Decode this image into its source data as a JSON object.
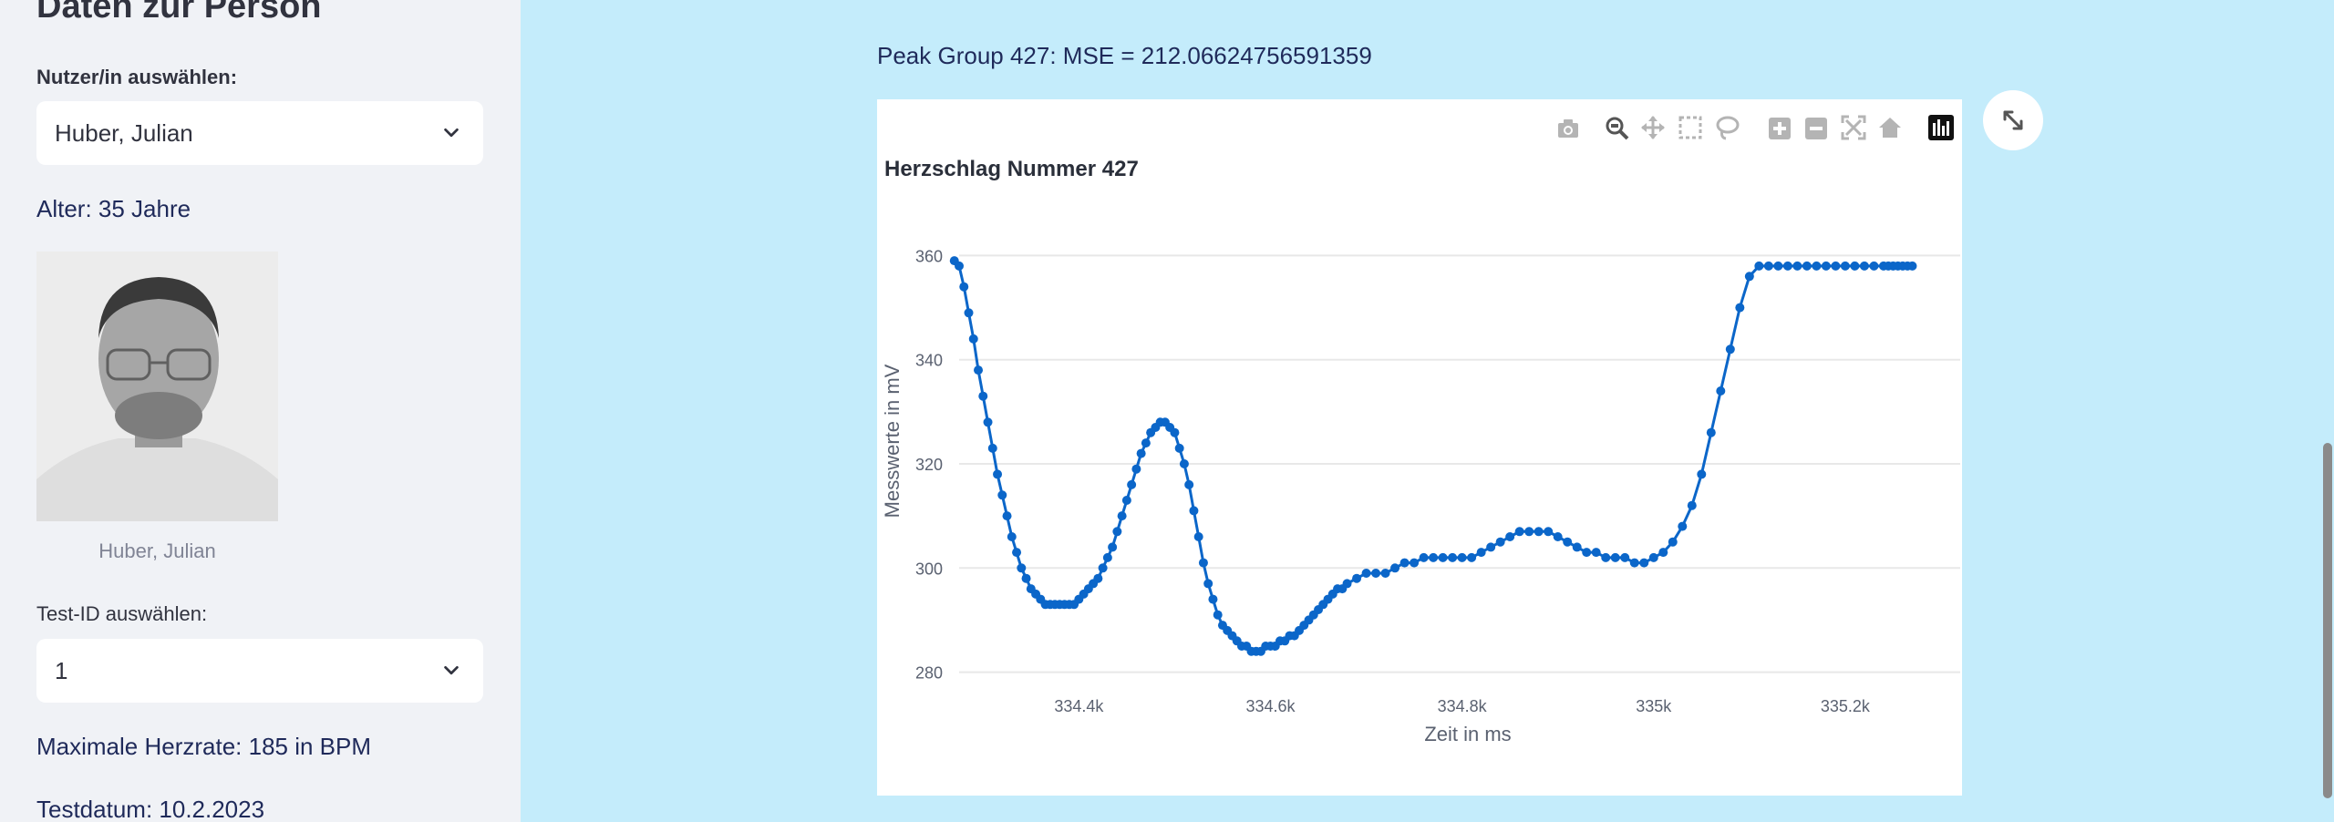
{
  "sidebar": {
    "title": "Daten zur Person",
    "user_select_label": "Nutzer/in auswählen:",
    "user_select_value": "Huber, Julian",
    "age_text": "Alter: 35 Jahre",
    "photo_caption": "Huber, Julian",
    "test_select_label": "Test-ID auswählen:",
    "test_select_value": "1",
    "max_hr_text": "Maximale Herzrate: 185 in BPM",
    "test_date_text": "Testdatum: 10.2.2023"
  },
  "main": {
    "peak_title": "Peak Group 427: MSE = 212.06624756591359"
  },
  "toolbar": {
    "icons": [
      "camera-icon",
      "zoom-icon",
      "pan-icon",
      "box-select-icon",
      "lasso-select-icon",
      "zoom-in-icon",
      "zoom-out-icon",
      "autoscale-icon",
      "reset-axes-icon",
      "plotly-logo-icon"
    ]
  },
  "colors": {
    "background": "#c4ecfb",
    "sidebar": "#f0f2f6",
    "line": "#0b66c9"
  },
  "chart_data": {
    "type": "line",
    "title": "Herzschlag Nummer 427",
    "xlabel": "Zeit in ms",
    "ylabel": "Messwerte in mV",
    "xlim": [
      334275,
      335320
    ],
    "ylim": [
      278,
      362
    ],
    "x_ticks": [
      334400,
      334600,
      334800,
      335000,
      335200
    ],
    "x_tick_labels": [
      "334.4k",
      "334.6k",
      "334.8k",
      "335k",
      "335.2k"
    ],
    "y_ticks": [
      280,
      300,
      320,
      340,
      360
    ],
    "y_tick_labels": [
      "280",
      "300",
      "320",
      "340",
      "360"
    ],
    "grid": "horizontal",
    "series": [
      {
        "x": [
          334270,
          334275,
          334280,
          334285,
          334290,
          334295,
          334300,
          334305,
          334310,
          334315,
          334320,
          334325,
          334330,
          334335,
          334340,
          334345,
          334350,
          334355,
          334360,
          334365,
          334370,
          334375,
          334380,
          334385,
          334390,
          334395,
          334400,
          334405,
          334410,
          334415,
          334420,
          334425,
          334430,
          334435,
          334440,
          334445,
          334450,
          334455,
          334460,
          334465,
          334470,
          334475,
          334480,
          334485,
          334490,
          334495,
          334500,
          334505,
          334510,
          334515,
          334520,
          334525,
          334530,
          334535,
          334540,
          334545,
          334550,
          334555,
          334560,
          334565,
          334570,
          334575,
          334580,
          334585,
          334590,
          334595,
          334600,
          334605,
          334610,
          334615,
          334620,
          334625,
          334630,
          334635,
          334640,
          334645,
          334650,
          334655,
          334660,
          334665,
          334670,
          334675,
          334680,
          334690,
          334700,
          334710,
          334720,
          334730,
          334740,
          334750,
          334760,
          334770,
          334780,
          334790,
          334800,
          334810,
          334820,
          334830,
          334840,
          334850,
          334860,
          334870,
          334880,
          334890,
          334900,
          334910,
          334920,
          334930,
          334940,
          334950,
          334960,
          334970,
          334980,
          334990,
          335000,
          335010,
          335020,
          335030,
          335040,
          335050,
          335060,
          335070,
          335080,
          335090,
          335100,
          335110,
          335120,
          335130,
          335140,
          335150,
          335160,
          335170,
          335180,
          335190,
          335200,
          335210,
          335220,
          335230,
          335240,
          335245,
          335250,
          335255,
          335260,
          335265,
          335270
        ],
        "y": [
          359,
          358,
          354,
          349,
          344,
          338,
          333,
          328,
          323,
          318,
          314,
          310,
          306,
          303,
          300,
          298,
          296,
          295,
          294,
          293,
          293,
          293,
          293,
          293,
          293,
          293,
          294,
          295,
          296,
          297,
          298,
          300,
          302,
          304,
          307,
          310,
          313,
          316,
          319,
          322,
          324,
          326,
          327,
          328,
          328,
          327,
          326,
          323,
          320,
          316,
          311,
          306,
          301,
          297,
          294,
          291,
          289,
          288,
          287,
          286,
          285,
          285,
          284,
          284,
          284,
          285,
          285,
          285,
          286,
          286,
          287,
          287,
          288,
          289,
          290,
          291,
          292,
          293,
          294,
          295,
          296,
          296,
          297,
          298,
          299,
          299,
          299,
          300,
          301,
          301,
          302,
          302,
          302,
          302,
          302,
          302,
          303,
          304,
          305,
          306,
          307,
          307,
          307,
          307,
          306,
          305,
          304,
          303,
          303,
          302,
          302,
          302,
          301,
          301,
          302,
          303,
          305,
          308,
          312,
          318,
          326,
          334,
          342,
          350,
          356,
          358,
          358,
          358,
          358,
          358,
          358,
          358,
          358,
          358,
          358,
          358,
          358,
          358,
          358,
          358,
          358,
          358,
          358,
          358,
          358
        ]
      }
    ]
  }
}
